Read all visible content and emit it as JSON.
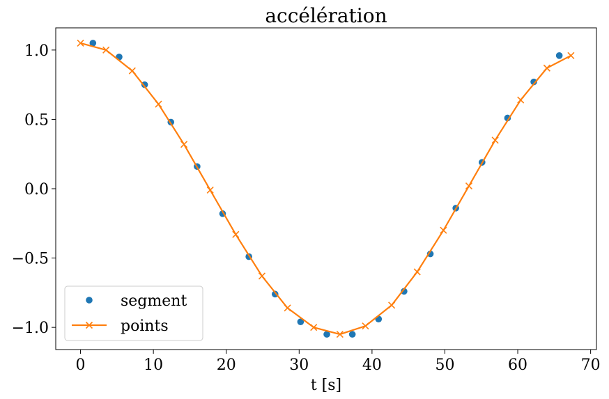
{
  "chart_data": {
    "type": "line",
    "title": "accélération",
    "xlabel": "t [s]",
    "ylabel": "",
    "xlim": [
      -3.4,
      70.8
    ],
    "ylim": [
      -1.16,
      1.16
    ],
    "xticks": [
      0,
      10,
      20,
      30,
      40,
      50,
      60,
      70
    ],
    "xtick_labels": [
      "0",
      "10",
      "20",
      "30",
      "40",
      "50",
      "60",
      "70"
    ],
    "yticks": [
      1.0,
      0.5,
      0.0,
      -0.5,
      -1.0
    ],
    "ytick_labels": [
      "1.0",
      "0.5",
      "0.0",
      "−0.5",
      "−1.0"
    ],
    "grid": false,
    "legend_position": "lower-left",
    "series": [
      {
        "name": "segment",
        "style": "markers",
        "marker": "circle",
        "color": "#1f77b4",
        "x": [
          1.7,
          5.3,
          8.8,
          12.4,
          16.0,
          19.5,
          23.1,
          26.7,
          30.2,
          33.8,
          37.3,
          40.9,
          44.4,
          48.0,
          51.5,
          55.1,
          58.6,
          62.2,
          65.7
        ],
        "y": [
          1.05,
          0.95,
          0.75,
          0.48,
          0.16,
          -0.18,
          -0.49,
          -0.76,
          -0.96,
          -1.05,
          -1.05,
          -0.94,
          -0.74,
          -0.47,
          -0.14,
          0.19,
          0.51,
          0.77,
          0.96
        ]
      },
      {
        "name": "points",
        "style": "line+markers",
        "marker": "x",
        "color": "#ff7f0e",
        "x": [
          0.0,
          3.5,
          7.1,
          10.7,
          14.2,
          17.8,
          21.3,
          24.9,
          28.4,
          32.0,
          35.6,
          39.1,
          42.7,
          46.2,
          49.8,
          53.3,
          56.9,
          60.4,
          64.0,
          67.3
        ],
        "y": [
          1.05,
          1.0,
          0.85,
          0.61,
          0.32,
          -0.01,
          -0.33,
          -0.63,
          -0.86,
          -1.0,
          -1.05,
          -0.99,
          -0.84,
          -0.6,
          -0.3,
          0.02,
          0.35,
          0.64,
          0.87,
          0.96
        ]
      }
    ]
  }
}
